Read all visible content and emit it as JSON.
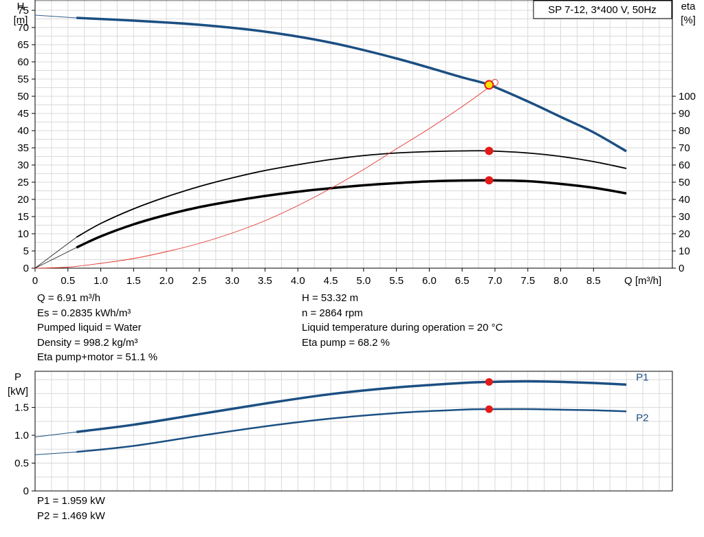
{
  "legend_box": "SP 7-12, 3*400 V, 50Hz",
  "colors": {
    "pump_curve": "#1b4f82",
    "eta_curve": "#000000",
    "npsh_curve": "#e3322a",
    "operating_point": "#e31a1a",
    "grid": "#d9d9d9"
  },
  "chart_data": [
    {
      "type": "line",
      "title": "",
      "x_label": "Q [m³/h]",
      "y_label_left": "H",
      "y_unit_left": "[m]",
      "y_label_right": "eta",
      "y_unit_right": "[%]",
      "xlim": [
        0,
        9.7
      ],
      "ylim_left": [
        0,
        78
      ],
      "ylim_right": [
        0,
        156
      ],
      "x_ticks": [
        "0",
        "0.5",
        "1.0",
        "1.5",
        "2.0",
        "2.5",
        "3.0",
        "3.5",
        "4.0",
        "4.5",
        "5.0",
        "5.5",
        "6.0",
        "6.5",
        "7.0",
        "7.5",
        "8.0",
        "8.5"
      ],
      "y_ticks_left": [
        "0",
        "5",
        "10",
        "15",
        "20",
        "25",
        "30",
        "35",
        "40",
        "45",
        "50",
        "55",
        "60",
        "65",
        "70",
        "75"
      ],
      "y_ticks_right": [
        "0",
        "10",
        "20",
        "30",
        "40",
        "50",
        "60",
        "70",
        "80",
        "90",
        "100"
      ],
      "grid": true,
      "series": [
        {
          "kind": "head",
          "axis": "left",
          "x": [
            0.63,
            1.5,
            2.5,
            3.5,
            4.5,
            5.5,
            6.5,
            6.91,
            7.5,
            8.0,
            8.5,
            9.0
          ],
          "y": [
            72.8,
            72.0,
            70.8,
            68.8,
            65.6,
            61.0,
            55.5,
            53.32,
            48.5,
            44.0,
            39.5,
            34.0
          ],
          "extrapolated_x": [
            0,
            0.63
          ],
          "extrapolated_y": [
            73.6,
            72.8
          ]
        },
        {
          "kind": "eta",
          "axis": "right",
          "x": [
            0.63,
            1.0,
            1.5,
            2.0,
            2.5,
            3.0,
            3.5,
            4.0,
            4.5,
            5.0,
            5.5,
            6.0,
            6.5,
            6.91,
            7.5,
            8.0,
            8.5,
            9.0
          ],
          "y": [
            18.0,
            26.0,
            34.5,
            41.5,
            47.5,
            52.5,
            56.8,
            60.2,
            63.2,
            65.5,
            67.0,
            67.8,
            68.2,
            68.2,
            67.0,
            65.0,
            62.0,
            58.0
          ],
          "extrapolated_x": [
            0,
            0.63
          ],
          "extrapolated_y": [
            0,
            18.0
          ]
        },
        {
          "kind": "eta_total",
          "axis": "right",
          "x": [
            0.63,
            1.0,
            1.5,
            2.0,
            2.5,
            3.0,
            3.5,
            4.0,
            4.5,
            5.0,
            5.5,
            6.0,
            6.5,
            6.91,
            7.5,
            8.0,
            8.5,
            9.0
          ],
          "y": [
            12.0,
            18.5,
            25.5,
            31.0,
            35.5,
            39.0,
            42.0,
            44.5,
            46.5,
            48.2,
            49.5,
            50.5,
            51.0,
            51.1,
            50.6,
            49.0,
            46.8,
            43.5
          ],
          "extrapolated_x": [
            0,
            0.63
          ],
          "extrapolated_y": [
            0,
            12.0
          ]
        },
        {
          "kind": "npsh",
          "axis": "left",
          "x": [
            0,
            0.5,
            1.0,
            1.5,
            2.0,
            2.5,
            3.0,
            3.5,
            4.0,
            4.5,
            5.0,
            5.5,
            6.0,
            6.5,
            6.91,
            7.0
          ],
          "y": [
            0,
            0.3,
            1.4,
            2.8,
            4.8,
            7.2,
            10.2,
            13.8,
            18.2,
            23.2,
            28.7,
            34.7,
            40.6,
            47.0,
            52.6,
            54.0
          ]
        }
      ],
      "operating_point": {
        "x": 6.91,
        "head": 53.32,
        "eta": 68.2,
        "eta_total": 51.1,
        "npsh_end_x": 7.0,
        "npsh_end_y": 54.0
      }
    },
    {
      "type": "line",
      "title": "",
      "y_label": "P",
      "y_unit": "[kW]",
      "xlim": [
        0,
        9.7
      ],
      "ylim": [
        0,
        2.15
      ],
      "y_ticks": [
        "0",
        "0.5",
        "1.0",
        "1.5"
      ],
      "grid": true,
      "series": [
        {
          "name": "P1",
          "x": [
            0.63,
            1.5,
            2.5,
            3.5,
            4.5,
            5.5,
            6.5,
            6.91,
            7.5,
            8.0,
            8.5,
            9.0
          ],
          "y": [
            1.06,
            1.19,
            1.38,
            1.57,
            1.74,
            1.86,
            1.94,
            1.959,
            1.97,
            1.96,
            1.94,
            1.91
          ],
          "extrapolated_x": [
            0,
            0.63
          ],
          "extrapolated_y": [
            0.97,
            1.06
          ]
        },
        {
          "name": "P2",
          "x": [
            0.63,
            1.5,
            2.5,
            3.5,
            4.5,
            5.5,
            6.5,
            6.91,
            7.5,
            8.0,
            8.5,
            9.0
          ],
          "y": [
            0.7,
            0.81,
            0.99,
            1.16,
            1.3,
            1.4,
            1.46,
            1.469,
            1.47,
            1.46,
            1.45,
            1.43
          ],
          "extrapolated_x": [
            0,
            0.63
          ],
          "extrapolated_y": [
            0.65,
            0.7
          ]
        }
      ],
      "operating_point": {
        "x": 6.91,
        "P1": 1.959,
        "P2": 1.469
      }
    }
  ],
  "info": {
    "left": [
      "Q = 6.91 m³/h",
      "Es = 0.2835 kWh/m³",
      "Pumped liquid = Water",
      "Density = 998.2 kg/m³",
      "Eta pump+motor = 51.1 %"
    ],
    "right": [
      "H = 53.32 m",
      "n = 2864 rpm",
      "Liquid temperature during operation = 20 °C",
      "Eta pump = 68.2 %"
    ],
    "power": [
      "P1 = 1.959 kW",
      "P2 = 1.469 kW"
    ]
  }
}
